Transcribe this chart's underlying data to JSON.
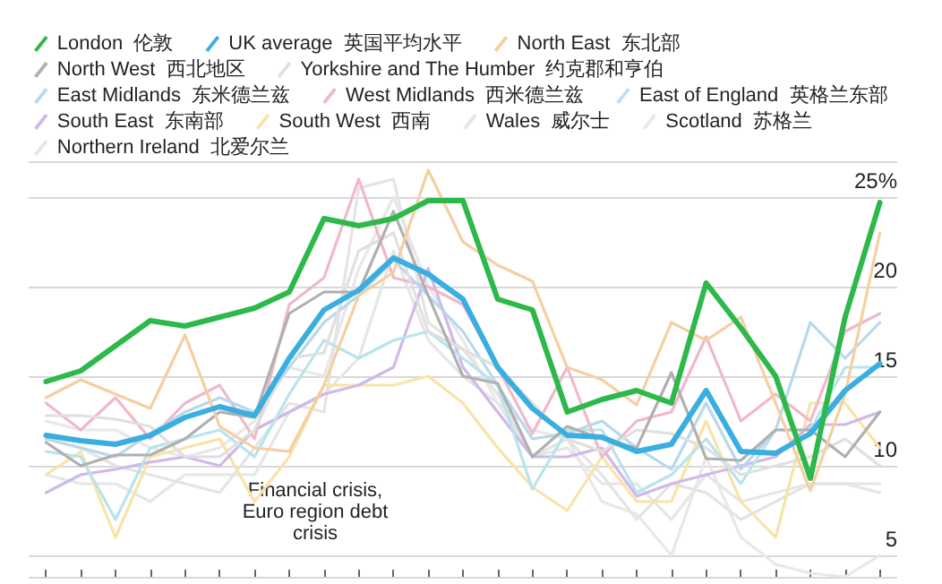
{
  "chart_data": {
    "type": "line",
    "categories": [
      null,
      null,
      null,
      null,
      null,
      null,
      null,
      null,
      null,
      null,
      null,
      null,
      null,
      null,
      null,
      null,
      null,
      null,
      null,
      null,
      null,
      null,
      null,
      null,
      null
    ],
    "ylim": [
      3.8,
      27
    ],
    "yticks": [
      {
        "value": 5,
        "label": "5"
      },
      {
        "value": 10,
        "label": "10"
      },
      {
        "value": 15,
        "label": "15"
      },
      {
        "value": 20,
        "label": "20"
      },
      {
        "value": 25,
        "label": "25%"
      }
    ],
    "grid": "y",
    "legend": "top",
    "tick_labels": "y",
    "marker": "none",
    "line_style": "solid",
    "annotations": [
      "Financial crisis,\nEuro region debt\ncrisis"
    ],
    "series": [
      {
        "name": "London  伦敦",
        "color": "#2db84a",
        "values": [
          14.7,
          15.3,
          16.7,
          18.1,
          17.8,
          18.3,
          18.8,
          19.7,
          23.8,
          23.4,
          23.8,
          24.8,
          24.8,
          19.3,
          18.7,
          13.0,
          13.7,
          14.2,
          13.5,
          20.2,
          17.7,
          15.0,
          9.3,
          18.3,
          24.7
        ]
      },
      {
        "name": "UK average  英国平均水平",
        "color": "#3aaee0",
        "values": [
          11.7,
          11.4,
          11.2,
          11.7,
          12.7,
          13.3,
          12.8,
          16.0,
          18.7,
          19.8,
          21.6,
          20.7,
          19.3,
          15.5,
          13.2,
          11.7,
          11.6,
          10.8,
          11.2,
          14.2,
          10.8,
          10.7,
          11.8,
          14.2,
          15.7
        ]
      },
      {
        "name": "North East  东北部",
        "color": "#f5cfa0",
        "values": [
          13.8,
          14.8,
          14.0,
          13.2,
          17.3,
          12.2,
          11.0,
          10.8,
          14.5,
          19.5,
          20.8,
          26.5,
          22.5,
          21.2,
          20.3,
          15.5,
          14.8,
          13.4,
          18.0,
          17.0,
          18.3,
          13.5,
          8.6,
          14.0,
          23.0
        ]
      },
      {
        "name": "North West  西北地区",
        "color": "#b0b0b0",
        "values": [
          11.3,
          10.0,
          10.6,
          10.6,
          11.5,
          13.0,
          12.7,
          18.5,
          19.7,
          19.7,
          24.2,
          19.5,
          15.0,
          14.6,
          10.5,
          12.2,
          11.5,
          11.0,
          15.2,
          10.4,
          10.3,
          12.0,
          12.0,
          10.5,
          13.0
        ]
      },
      {
        "name": "Yorkshire and The Humber  约克郡和亨伯",
        "color": "#e0e0e0",
        "values": [
          12.8,
          12.8,
          12.6,
          12.2,
          10.5,
          10.5,
          12.0,
          16.0,
          16.3,
          22.0,
          23.0,
          17.5,
          16.5,
          15.5,
          13.5,
          11.5,
          10.8,
          12.0,
          11.8,
          11.0,
          9.5,
          10.0,
          10.5,
          11.5,
          10.0
        ]
      },
      {
        "name": "East Midlands  东米德兰兹",
        "color": "#b8d8ec",
        "values": [
          11.5,
          11.0,
          10.5,
          11.8,
          13.0,
          13.8,
          13.0,
          15.5,
          18.0,
          19.5,
          21.5,
          19.5,
          17.5,
          14.5,
          11.5,
          11.8,
          12.5,
          11.0,
          9.8,
          13.5,
          9.8,
          12.0,
          18.0,
          16.0,
          18.0
        ]
      },
      {
        "name": "West Midlands  西米德兰兹",
        "color": "#f0b8c8",
        "values": [
          13.5,
          12.0,
          13.8,
          11.5,
          13.5,
          14.5,
          11.5,
          19.0,
          20.5,
          26.0,
          20.5,
          20.0,
          19.0,
          15.5,
          11.8,
          15.5,
          10.5,
          12.5,
          13.0,
          17.2,
          12.5,
          14.0,
          12.5,
          17.5,
          18.5
        ]
      },
      {
        "name": "East of England  英格兰东部",
        "color": "#b8e4ec",
        "values": [
          10.8,
          10.5,
          7.0,
          11.0,
          11.5,
          12.0,
          10.5,
          14.0,
          17.0,
          16.0,
          17.0,
          17.5,
          16.0,
          14.5,
          8.7,
          12.0,
          12.0,
          8.5,
          9.5,
          11.5,
          9.0,
          12.0,
          12.0,
          15.5,
          15.5
        ]
      },
      {
        "name": "South East  东南部",
        "color": "#d0b8e8",
        "values": [
          8.5,
          9.5,
          9.8,
          10.2,
          10.5,
          10.0,
          12.0,
          13.0,
          14.0,
          14.5,
          15.5,
          21.0,
          15.5,
          13.0,
          10.5,
          10.5,
          11.0,
          8.3,
          9.0,
          9.5,
          10.0,
          10.5,
          12.3,
          12.3,
          13.0
        ]
      },
      {
        "name": "South West  西南",
        "color": "#f8e4a8",
        "values": [
          9.5,
          10.8,
          6.0,
          10.5,
          11.0,
          11.5,
          8.0,
          10.5,
          14.5,
          14.5,
          14.5,
          15.0,
          13.5,
          11.0,
          8.8,
          7.5,
          10.5,
          8.0,
          8.0,
          12.5,
          8.0,
          6.0,
          13.5,
          13.5,
          11.0
        ]
      },
      {
        "name": "Wales  威尔士",
        "color": "#e4e4e4",
        "values": [
          11.5,
          11.0,
          10.0,
          9.5,
          9.0,
          8.5,
          11.0,
          13.5,
          13.0,
          25.5,
          26.0,
          18.0,
          16.5,
          14.0,
          10.5,
          11.5,
          9.5,
          7.0,
          9.0,
          8.5,
          7.0,
          8.0,
          9.0,
          9.0,
          9.0
        ]
      },
      {
        "name": "Scotland  苏格兰",
        "color": "#e8e8e8",
        "values": [
          12.5,
          12.0,
          12.0,
          11.0,
          10.5,
          11.0,
          12.5,
          15.5,
          15.0,
          21.0,
          25.0,
          20.0,
          17.0,
          13.5,
          12.0,
          11.5,
          8.0,
          7.3,
          5.0,
          10.5,
          6.0,
          4.5,
          4.0,
          3.8,
          5.0
        ]
      },
      {
        "name": "Northern Ireland  北爱尔兰",
        "color": "#e6e6e6",
        "values": [
          9.5,
          9.0,
          9.0,
          8.0,
          9.5,
          9.5,
          9.5,
          13.0,
          14.0,
          16.0,
          22.0,
          17.0,
          15.0,
          13.5,
          10.5,
          11.0,
          9.0,
          9.0,
          7.0,
          9.5,
          8.0,
          8.5,
          9.0,
          9.0,
          8.5
        ]
      }
    ]
  }
}
